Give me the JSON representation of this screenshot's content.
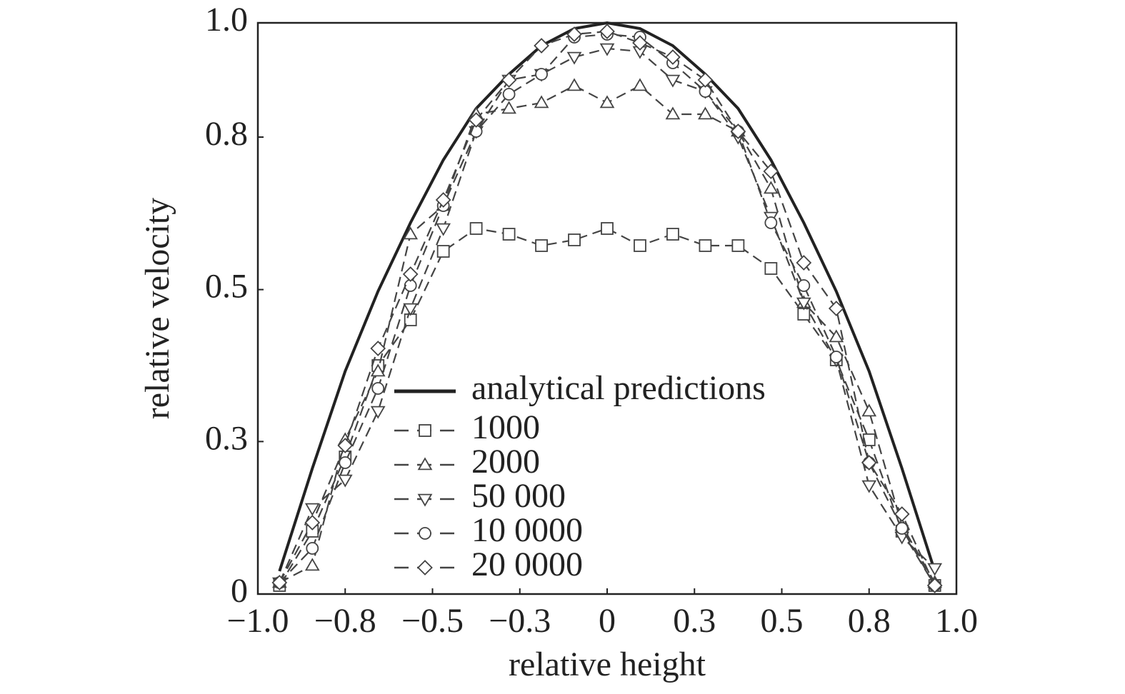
{
  "chart_data": {
    "type": "line",
    "x_label": "relative height",
    "y_label": "relative velocity",
    "x": [
      -0.938,
      -0.844,
      -0.75,
      -0.656,
      -0.563,
      -0.469,
      -0.375,
      -0.281,
      -0.188,
      -0.094,
      0,
      0.094,
      0.188,
      0.281,
      0.375,
      0.469,
      0.563,
      0.656,
      0.75,
      0.844,
      0.938
    ],
    "series": [
      {
        "name": "analytical predictions",
        "color": "#222222",
        "line_style": "solid",
        "marker": "none",
        "values": [
          0.04,
          0.22,
          0.39,
          0.53,
          0.65,
          0.76,
          0.85,
          0.91,
          0.96,
          0.99,
          1.0,
          0.99,
          0.96,
          0.91,
          0.85,
          0.76,
          0.65,
          0.53,
          0.39,
          0.22,
          0.04
        ]
      },
      {
        "name": "1000",
        "color": "#444444",
        "line_style": "dashed",
        "marker": "square",
        "values": [
          0.015,
          0.11,
          0.24,
          0.4,
          0.48,
          0.6,
          0.64,
          0.63,
          0.61,
          0.62,
          0.64,
          0.61,
          0.63,
          0.61,
          0.61,
          0.57,
          0.49,
          0.41,
          0.27,
          0.11,
          0.015
        ]
      },
      {
        "name": "2000",
        "color": "#444444",
        "line_style": "dashed",
        "marker": "triangle-up",
        "values": [
          0.02,
          0.05,
          0.27,
          0.39,
          0.63,
          0.68,
          0.84,
          0.85,
          0.86,
          0.89,
          0.86,
          0.89,
          0.84,
          0.84,
          0.81,
          0.71,
          0.51,
          0.45,
          0.32,
          0.12,
          0.02
        ]
      },
      {
        "name": "50 000",
        "color": "#444444",
        "line_style": "dashed",
        "marker": "triangle-down",
        "values": [
          0.02,
          0.15,
          0.2,
          0.32,
          0.5,
          0.64,
          0.81,
          0.9,
          0.91,
          0.94,
          0.955,
          0.95,
          0.9,
          0.88,
          0.8,
          0.66,
          0.51,
          0.41,
          0.19,
          0.1,
          0.045
        ]
      },
      {
        "name": "10 0000",
        "color": "#444444",
        "line_style": "dashed",
        "marker": "circle",
        "values": [
          0.02,
          0.08,
          0.23,
          0.36,
          0.54,
          0.68,
          0.81,
          0.875,
          0.91,
          0.975,
          0.98,
          0.975,
          0.93,
          0.88,
          0.81,
          0.65,
          0.54,
          0.415,
          0.23,
          0.115,
          0.015
        ]
      },
      {
        "name": "20 0000",
        "color": "#444444",
        "line_style": "dashed",
        "marker": "diamond",
        "values": [
          0.02,
          0.125,
          0.26,
          0.43,
          0.56,
          0.69,
          0.83,
          0.9,
          0.96,
          0.98,
          0.985,
          0.965,
          0.94,
          0.9,
          0.81,
          0.74,
          0.58,
          0.5,
          0.23,
          0.14,
          0.015
        ]
      }
    ],
    "xlim": [
      -1,
      1
    ],
    "xticks": [
      {
        "value": -1,
        "label": "−1.0"
      },
      {
        "value": -0.75,
        "label": "−0.8"
      },
      {
        "value": -0.5,
        "label": "−0.5"
      },
      {
        "value": -0.25,
        "label": "−0.3"
      },
      0,
      {
        "value": 0.25,
        "label": "0.3"
      },
      {
        "value": 0.5,
        "label": "0.5"
      },
      {
        "value": 0.75,
        "label": "0.8"
      },
      {
        "value": 1,
        "label": "1.0"
      }
    ],
    "ylim": [
      0,
      1
    ],
    "yticks": [
      0,
      {
        "value": 0.267,
        "label": "0.3"
      },
      {
        "value": 0.533,
        "label": "0.5"
      },
      {
        "value": 0.8,
        "label": "0.8"
      },
      {
        "value": 1,
        "label": "1.0"
      }
    ],
    "grid": false
  }
}
